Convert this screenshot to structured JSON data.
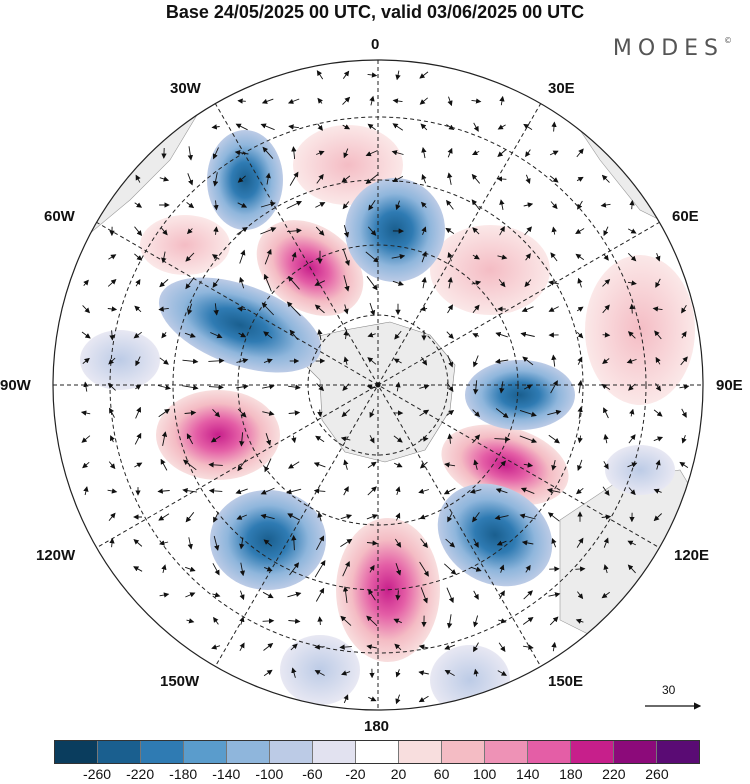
{
  "title": "Base 24/05/2025 00 UTC, valid 03/06/2025 00 UTC",
  "brand": "MODES",
  "brand_mark": "©",
  "longitude_labels": [
    "0",
    "30E",
    "60E",
    "90E",
    "120E",
    "150E",
    "180",
    "150W",
    "120W",
    "90W",
    "60W",
    "30W"
  ],
  "reference_vector": {
    "label": "30"
  },
  "colorbar": {
    "colors": [
      "#0a3d5e",
      "#1a5f8f",
      "#2f7bb3",
      "#5a9ccc",
      "#8fb6dc",
      "#bccbe6",
      "#e2e2f0",
      "#ffffff",
      "#f8dede",
      "#f4bcc4",
      "#ee92b6",
      "#e45ea6",
      "#c71f8b",
      "#8c0a7a",
      "#5a0b74"
    ],
    "ticks": [
      "-260",
      "-220",
      "-180",
      "-140",
      "-100",
      "-60",
      "-20",
      "20",
      "60",
      "100",
      "140",
      "180",
      "220",
      "260"
    ]
  },
  "icons": {
    "arrow": "arrow-icon"
  }
}
